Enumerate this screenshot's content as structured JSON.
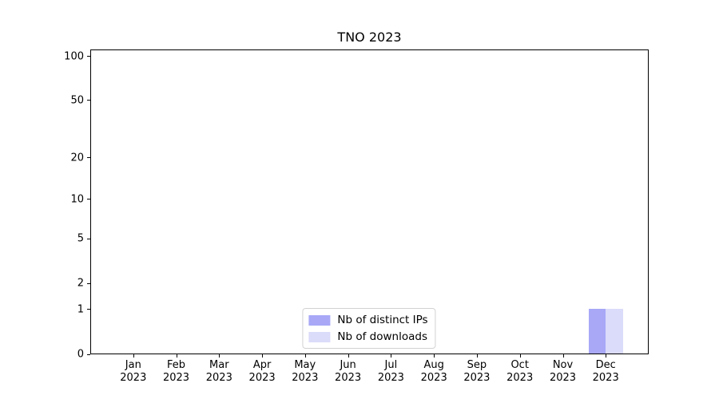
{
  "chart_data": {
    "type": "bar",
    "title": "TNO 2023",
    "categories": [
      "Jan 2023",
      "Feb 2023",
      "Mar 2023",
      "Apr 2023",
      "May 2023",
      "Jun 2023",
      "Jul 2023",
      "Aug 2023",
      "Sep 2023",
      "Oct 2023",
      "Nov 2023",
      "Dec 2023"
    ],
    "series": [
      {
        "name": "Nb of distinct IPs",
        "color": "#a8a8f7",
        "values": [
          0,
          0,
          0,
          0,
          0,
          0,
          0,
          0,
          0,
          0,
          0,
          1
        ]
      },
      {
        "name": "Nb of downloads",
        "color": "#dbdbfa",
        "values": [
          0,
          0,
          0,
          0,
          0,
          0,
          0,
          0,
          0,
          0,
          0,
          1
        ]
      }
    ],
    "xlabel": "",
    "ylabel": "",
    "yscale": "log1p",
    "ylim": [
      0,
      100
    ],
    "yticks": [
      0,
      1,
      2,
      5,
      10,
      20,
      50,
      100
    ],
    "minor_gridlines": [
      3,
      4,
      6,
      7,
      8,
      9,
      30,
      40,
      60,
      70,
      80,
      90
    ],
    "grid": "horizontal",
    "legend_position": "lower center",
    "colors": {
      "major_grid": "#d3d3d3",
      "minor_grid": "#f0f0f0",
      "spine": "#000000",
      "text": "#000000",
      "background": "#ffffff"
    }
  }
}
